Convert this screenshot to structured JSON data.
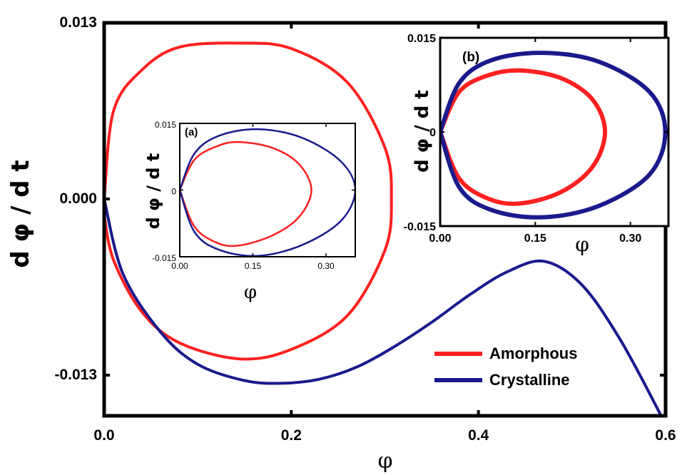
{
  "chart_data": [
    {
      "type": "line",
      "panel": "main",
      "title": "",
      "xlabel": "φ",
      "ylabel": "d φ / d t",
      "xlim": [
        0.0,
        0.6
      ],
      "ylim": [
        -0.016,
        0.013
      ],
      "xticks": [
        "0.0",
        "0.2",
        "0.4",
        "0.6"
      ],
      "yticks": [
        "0.013",
        "0.000",
        "-0.013"
      ],
      "legend_position": "bottom-right",
      "colors": {
        "Amorphous": "#ff2020",
        "Crystalline": "#1a1a8c"
      },
      "series": [
        {
          "name": "Amorphous",
          "color": "#ff2020",
          "x": [
            0.0,
            0.01,
            0.04,
            0.08,
            0.145,
            0.2,
            0.26,
            0.3,
            0.307,
            0.3,
            0.26,
            0.2,
            0.145,
            0.08,
            0.04,
            0.01,
            0.0
          ],
          "y": [
            0.0,
            0.0065,
            0.0095,
            0.0112,
            0.0115,
            0.0111,
            0.0086,
            0.0038,
            0.0,
            -0.0038,
            -0.0086,
            -0.0111,
            -0.0118,
            -0.0106,
            -0.0083,
            -0.0045,
            -0.0012
          ]
        },
        {
          "name": "Crystalline",
          "color": "#1a1a8c",
          "x": [
            0.0,
            0.02,
            0.06,
            0.1,
            0.15,
            0.19,
            0.23,
            0.27,
            0.31,
            0.35,
            0.39,
            0.43,
            0.47,
            0.51,
            0.55,
            0.59,
            0.6
          ],
          "y": [
            0.0,
            -0.0055,
            -0.0098,
            -0.0122,
            -0.0134,
            -0.0136,
            -0.0133,
            -0.0124,
            -0.0109,
            -0.0091,
            -0.0071,
            -0.0054,
            -0.0046,
            -0.0063,
            -0.0102,
            -0.0153,
            -0.0168
          ]
        }
      ]
    },
    {
      "type": "line",
      "panel": "(a)",
      "title": "",
      "xlabel": "φ",
      "ylabel": "d φ / d t",
      "xlim": [
        0.0,
        0.36
      ],
      "ylim": [
        -0.015,
        0.015
      ],
      "xticks": [
        "0.00",
        "0.15",
        "0.30"
      ],
      "yticks": [
        "0.015",
        "0",
        "-0.015"
      ],
      "series": [
        {
          "name": "Amorphous",
          "color": "#ff2020",
          "x": [
            0.0,
            0.03,
            0.075,
            0.12,
            0.19,
            0.245,
            0.27,
            0.245,
            0.19,
            0.12,
            0.075,
            0.03,
            0.0
          ],
          "y": [
            0.0,
            0.0068,
            0.0098,
            0.0108,
            0.0095,
            0.0058,
            0.0,
            -0.006,
            -0.0102,
            -0.0125,
            -0.0118,
            -0.0082,
            0.0
          ]
        },
        {
          "name": "Crystalline",
          "color": "#1a1a8c",
          "x": [
            0.0,
            0.03,
            0.08,
            0.16,
            0.25,
            0.33,
            0.36,
            0.33,
            0.25,
            0.16,
            0.08,
            0.03,
            0.0
          ],
          "y": [
            0.0,
            0.0082,
            0.0122,
            0.0137,
            0.0118,
            0.0065,
            0.0,
            -0.007,
            -0.0124,
            -0.0148,
            -0.0134,
            -0.0094,
            0.0
          ]
        }
      ]
    },
    {
      "type": "line",
      "panel": "(b)",
      "title": "",
      "xlabel": "φ",
      "ylabel": "d φ / d t",
      "xlim": [
        0.0,
        0.36
      ],
      "ylim": [
        -0.015,
        0.015
      ],
      "xticks": [
        "0.00",
        "0.15",
        "0.30"
      ],
      "yticks": [
        "0.015",
        "0",
        "-0.015"
      ],
      "series": [
        {
          "name": "Amorphous",
          "color": "#ff2020",
          "x": [
            0.0,
            0.03,
            0.075,
            0.125,
            0.19,
            0.24,
            0.26,
            0.24,
            0.19,
            0.125,
            0.075,
            0.03,
            0.0
          ],
          "y": [
            0.0,
            0.0064,
            0.009,
            0.0098,
            0.0086,
            0.0052,
            0.0,
            -0.0056,
            -0.0096,
            -0.0114,
            -0.0106,
            -0.0074,
            0.0
          ]
        },
        {
          "name": "Crystalline",
          "color": "#1a1a8c",
          "x": [
            0.0,
            0.03,
            0.08,
            0.16,
            0.25,
            0.33,
            0.355,
            0.33,
            0.25,
            0.16,
            0.08,
            0.03,
            0.0
          ],
          "y": [
            0.0,
            0.0078,
            0.0114,
            0.0126,
            0.0112,
            0.0064,
            0.0,
            -0.0068,
            -0.0118,
            -0.0136,
            -0.0124,
            -0.0088,
            0.0
          ]
        }
      ]
    }
  ],
  "legend": {
    "amorphous_label": "Amorphous",
    "crystalline_label": "Crystalline"
  },
  "panels": {
    "a_label": "(a)",
    "b_label": "(b)"
  }
}
